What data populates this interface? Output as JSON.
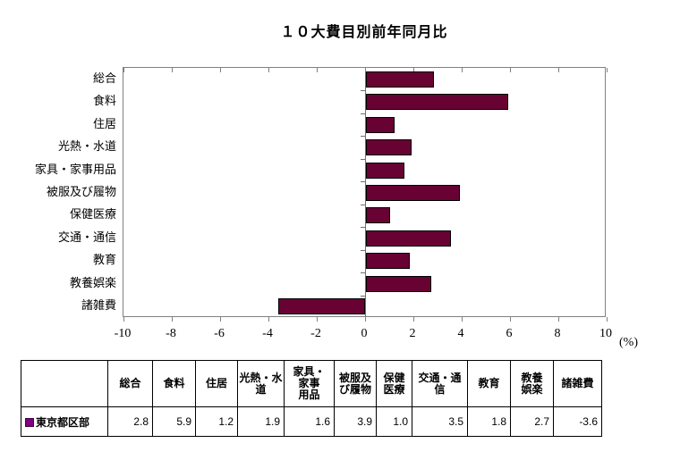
{
  "title": "１０大費目別前年同月比",
  "unit_label": "(%)",
  "chart_data": {
    "type": "bar",
    "orientation": "horizontal",
    "title": "１０大費目別前年同月比",
    "categories": [
      "総合",
      "食料",
      "住居",
      "光熱・水道",
      "家具・家事用品",
      "被服及び履物",
      "保健医療",
      "交通・通信",
      "教育",
      "教養娯楽",
      "諸雑費"
    ],
    "series": [
      {
        "name": "東京都区部",
        "values": [
          2.8,
          5.9,
          1.2,
          1.9,
          1.6,
          3.9,
          1.0,
          3.5,
          1.8,
          2.7,
          -3.6
        ]
      }
    ],
    "xlabel": "(%)",
    "xlim": [
      -10,
      10
    ],
    "xtick_step": 2,
    "grid": false,
    "legend_position": "bottom-table",
    "bar_color": "#670233",
    "bar_border_color": "#000000"
  },
  "table": {
    "legend_label": "東京都区部",
    "legend_color": "#7F017F",
    "headers": [
      "総合",
      "食料",
      "住居",
      "光熱・水\n道",
      "家具・\n家事\n用品",
      "被服及\nび履物",
      "保健\n医療",
      "交通・通\n信",
      "教育",
      "教養\n娯楽",
      "諸雑費"
    ]
  }
}
